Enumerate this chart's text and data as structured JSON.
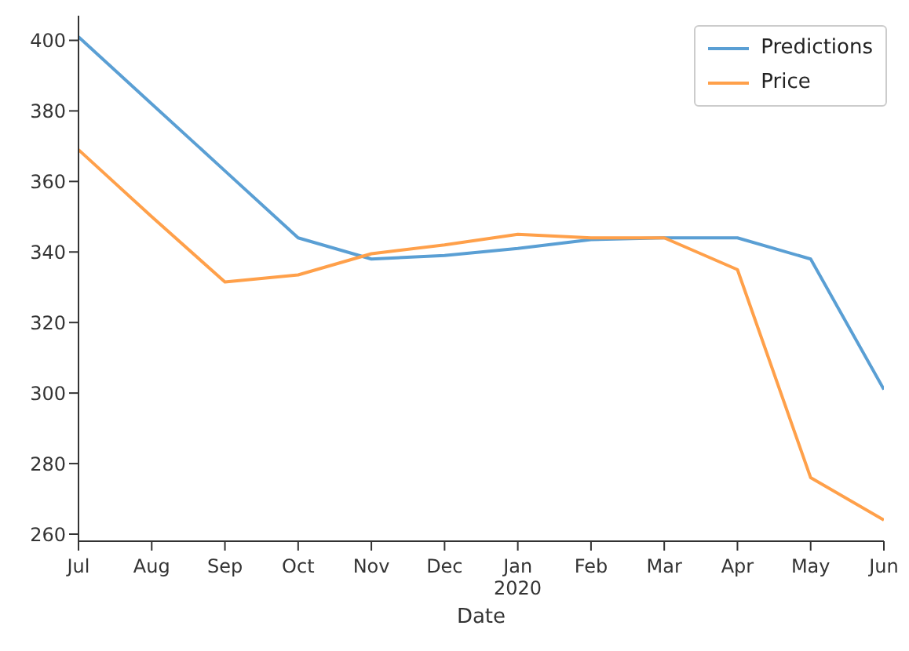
{
  "chart_data": {
    "type": "line",
    "xlabel": "Date",
    "x": [
      "2019-07",
      "2019-08",
      "2019-09",
      "2019-10",
      "2019-11",
      "2019-12",
      "2020-01",
      "2020-02",
      "2020-03",
      "2020-04",
      "2020-05",
      "2020-06"
    ],
    "xticks": [
      {
        "value": "2019-07",
        "label": "Jul"
      },
      {
        "value": "2019-08",
        "label": "Aug"
      },
      {
        "value": "2019-09",
        "label": "Sep"
      },
      {
        "value": "2019-10",
        "label": "Oct"
      },
      {
        "value": "2019-11",
        "label": "Nov"
      },
      {
        "value": "2019-12",
        "label": "Dec"
      },
      {
        "value": "2020-01",
        "label": "Jan\n2020"
      },
      {
        "value": "2020-02",
        "label": "Feb"
      },
      {
        "value": "2020-03",
        "label": "Mar"
      },
      {
        "value": "2020-04",
        "label": "Apr"
      },
      {
        "value": "2020-05",
        "label": "May"
      },
      {
        "value": "2020-06",
        "label": "Jun"
      }
    ],
    "series": [
      {
        "name": "Predictions",
        "color": "#5a9fd4",
        "values": [
          401,
          382,
          363,
          344,
          338,
          339,
          341,
          343.5,
          344,
          344,
          338,
          301
        ]
      },
      {
        "name": "Price",
        "color": "#ffa04a",
        "values": [
          369,
          350,
          331.5,
          333.5,
          339.5,
          342,
          345,
          344,
          344,
          335,
          276,
          264
        ]
      }
    ],
    "xlim": [
      "2019-07",
      "2020-06"
    ],
    "ylim": [
      258,
      407
    ],
    "yticks": [
      260,
      280,
      300,
      320,
      340,
      360,
      380,
      400
    ],
    "grid": false,
    "legend": "top right",
    "marker": "none",
    "line_style": "solid"
  }
}
